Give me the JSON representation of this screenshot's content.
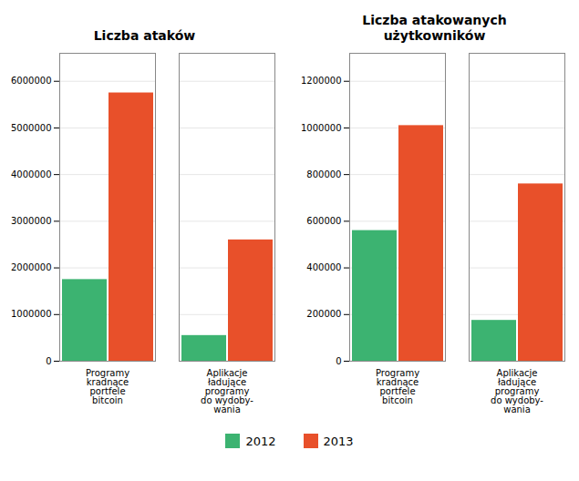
{
  "chart_data": [
    {
      "type": "bar",
      "title": "Liczba ataków",
      "categories": [
        "Programy\nkradnące\nportfele\nbitcoin",
        "Aplikacje\nładujące\nprogramy\ndo wydoby-\nwania"
      ],
      "series": [
        {
          "name": "2012",
          "color": "#3CB371",
          "values": [
            1750000,
            550000
          ]
        },
        {
          "name": "2013",
          "color": "#E8502A",
          "values": [
            5750000,
            2600000
          ]
        }
      ],
      "ylim": [
        0,
        6600000
      ],
      "yticks": [
        0,
        1000000,
        2000000,
        3000000,
        4000000,
        5000000,
        6000000
      ],
      "grid": true,
      "legend": "bottom"
    },
    {
      "type": "bar",
      "title": "Liczba atakowanych\nużytkowników",
      "categories": [
        "Programy\nkradnące\nportfele\nbitcoin",
        "Aplikacje\nładujące\nprogramy\ndo wydoby-\nwania"
      ],
      "series": [
        {
          "name": "2012",
          "color": "#3CB371",
          "values": [
            560000,
            175000
          ]
        },
        {
          "name": "2013",
          "color": "#E8502A",
          "values": [
            1010000,
            760000
          ]
        }
      ],
      "ylim": [
        0,
        1320000
      ],
      "yticks": [
        0,
        200000,
        400000,
        600000,
        800000,
        1000000,
        1200000
      ],
      "grid": true,
      "legend": "bottom"
    }
  ]
}
